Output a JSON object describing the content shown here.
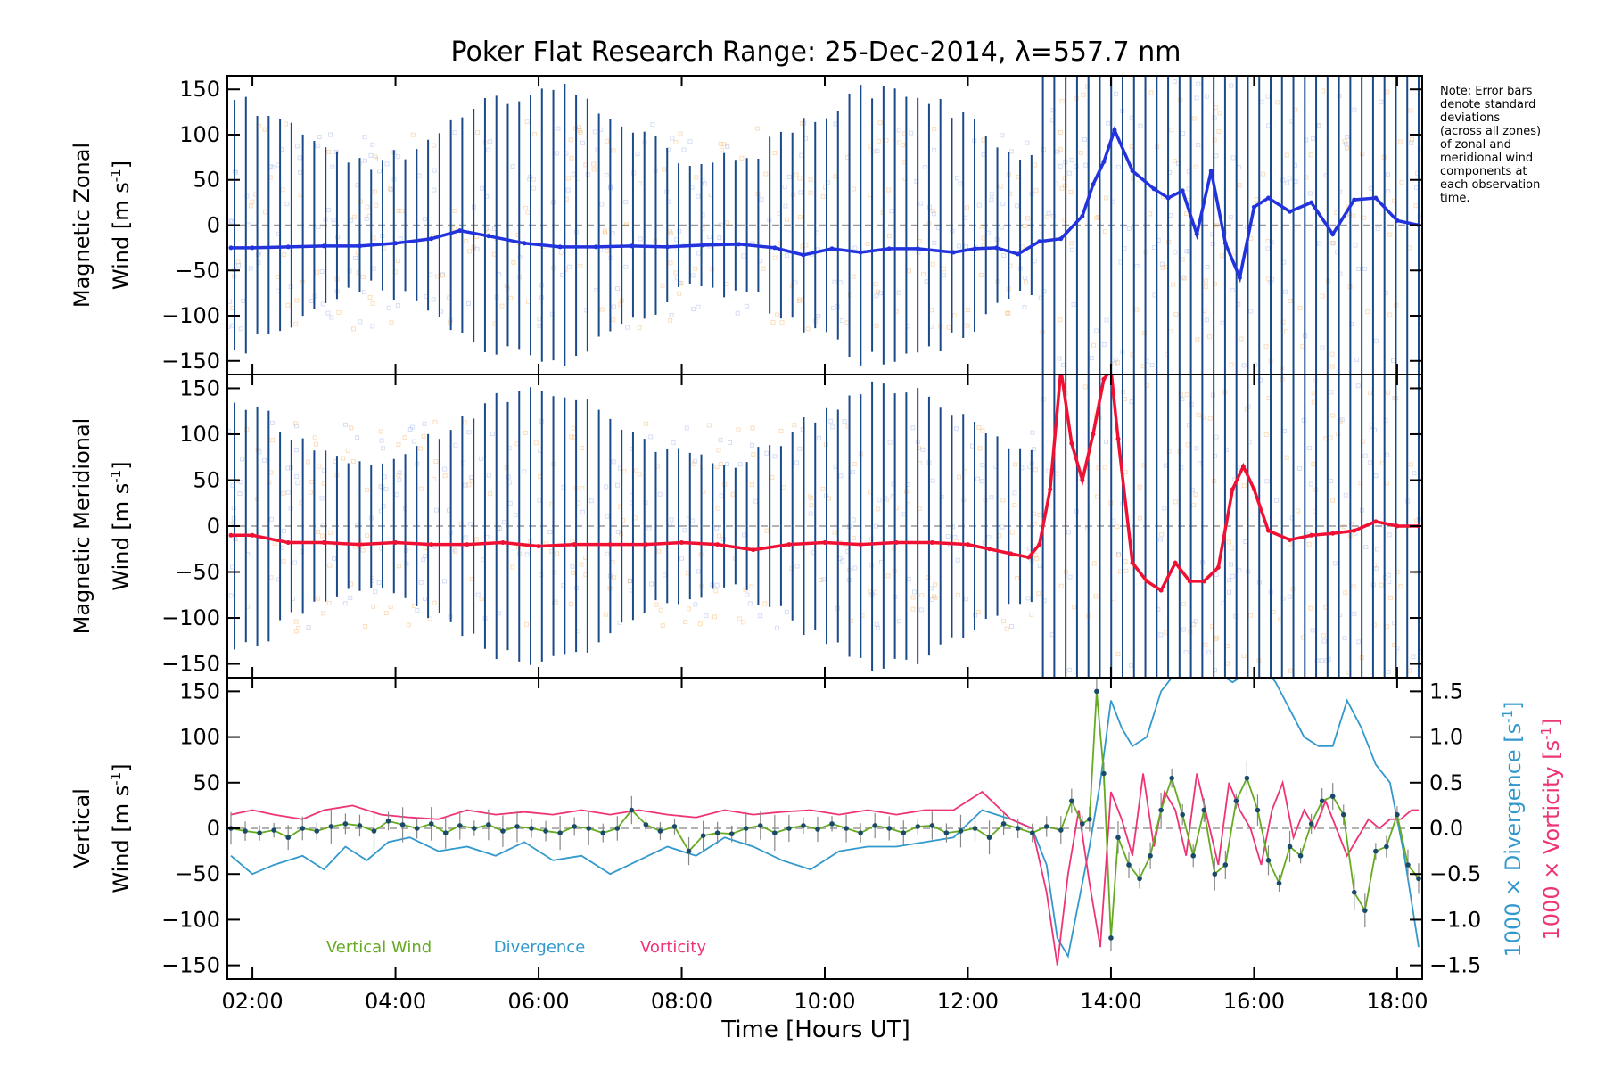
{
  "title": "Poker Flat Research Range: 25-Dec-2014, λ=557.7 nm",
  "note": [
    "Note: Error bars",
    "denote standard",
    "deviations",
    "(across all zones)",
    "of zonal and",
    "meridional wind",
    "components at",
    "each observation",
    "time."
  ],
  "colors": {
    "zonal": "#2233dd",
    "zonal_bg": "#2a4a9a",
    "meridional": "#ee1133",
    "vertical": "#66aa22",
    "divergence": "#3399cc",
    "vorticity": "#ee3377",
    "errorbar": "#1a4a8a",
    "marker": "#1a4a6a",
    "faint_orange": "#f4a040",
    "faint_blue": "#8aa0e0",
    "zero": "#999999"
  },
  "chart_data": [
    {
      "type": "line",
      "panel": "zonal",
      "ylabel_line1": "Magnetic Zonal",
      "ylabel_line2": "Wind [m s",
      "ylabel_sup": "-1",
      "ylabel_close": "]",
      "ylim": [
        -165,
        165
      ],
      "yticks": [
        "150",
        "100",
        "50",
        "0",
        "−50",
        "−100",
        "−150"
      ],
      "yticks_values": [
        150,
        100,
        50,
        0,
        -50,
        -100,
        -150
      ],
      "x": [
        1.7,
        2.0,
        2.5,
        3.0,
        3.5,
        4.0,
        4.5,
        4.9,
        5.3,
        5.8,
        6.3,
        6.8,
        7.3,
        7.8,
        8.3,
        8.8,
        9.3,
        9.7,
        10.1,
        10.5,
        10.9,
        11.3,
        11.8,
        12.1,
        12.4,
        12.7,
        13.0,
        13.3,
        13.6,
        13.75,
        13.9,
        14.05,
        14.3,
        14.6,
        14.8,
        15.0,
        15.2,
        15.4,
        15.6,
        15.8,
        16.0,
        16.2,
        16.5,
        16.8,
        17.1,
        17.4,
        17.7,
        18.0,
        18.3
      ],
      "series": [
        {
          "values": [
            -25,
            -25,
            -24,
            -23,
            -23,
            -20,
            -15,
            -6,
            -12,
            -20,
            -24,
            -24,
            -23,
            -24,
            -22,
            -21,
            -25,
            -33,
            -26,
            -30,
            -26,
            -26,
            -30,
            -26,
            -25,
            -32,
            -18,
            -15,
            10,
            45,
            70,
            105,
            60,
            40,
            30,
            38,
            -10,
            60,
            -20,
            -58,
            20,
            30,
            15,
            25,
            -10,
            28,
            30,
            5,
            0
          ]
        }
      ],
      "title": ""
    },
    {
      "type": "line",
      "panel": "meridional",
      "ylabel_line1": "Magnetic Meridional",
      "ylabel_line2": "Wind [m s",
      "ylabel_sup": "-1",
      "ylabel_close": "]",
      "ylim": [
        -165,
        165
      ],
      "yticks": [
        "150",
        "100",
        "50",
        "0",
        "−50",
        "−100",
        "−150"
      ],
      "yticks_values": [
        150,
        100,
        50,
        0,
        -50,
        -100,
        -150
      ],
      "x": [
        1.7,
        2.0,
        2.5,
        3.0,
        3.5,
        4.0,
        4.5,
        5.0,
        5.5,
        6.0,
        6.5,
        7.0,
        7.5,
        8.0,
        8.5,
        9.0,
        9.5,
        10.0,
        10.5,
        11.0,
        11.5,
        12.0,
        12.3,
        12.6,
        12.85,
        13.0,
        13.15,
        13.3,
        13.45,
        13.6,
        13.75,
        13.9,
        14.0,
        14.1,
        14.3,
        14.5,
        14.7,
        14.9,
        15.1,
        15.3,
        15.5,
        15.7,
        15.85,
        16.0,
        16.2,
        16.5,
        16.8,
        17.1,
        17.4,
        17.7,
        18.0,
        18.3
      ],
      "series": [
        {
          "values": [
            -10,
            -10,
            -18,
            -18,
            -20,
            -18,
            -20,
            -20,
            -18,
            -22,
            -20,
            -20,
            -20,
            -18,
            -20,
            -26,
            -20,
            -18,
            -20,
            -18,
            -18,
            -20,
            -25,
            -30,
            -34,
            -20,
            40,
            170,
            90,
            50,
            100,
            160,
            170,
            95,
            -40,
            -60,
            -70,
            -40,
            -60,
            -60,
            -45,
            40,
            65,
            40,
            -5,
            -15,
            -10,
            -8,
            -5,
            5,
            0,
            0
          ]
        }
      ],
      "title": ""
    },
    {
      "type": "line",
      "panel": "vertical",
      "ylabel_line1": "Vertical",
      "ylabel_line2": "Wind [m s",
      "ylabel_sup": "-1",
      "ylabel_close": "]",
      "ylim": [
        -165,
        165
      ],
      "yticks": [
        "150",
        "100",
        "50",
        "0",
        "−50",
        "−100",
        "−150"
      ],
      "yticks_values": [
        150,
        100,
        50,
        0,
        -50,
        -100,
        -150
      ],
      "y2ticks": [
        "1.5",
        "1.0",
        "0.5",
        "0.0",
        "−0.5",
        "−1.0",
        "−1.5"
      ],
      "y2ticks_values": [
        1.5,
        1.0,
        0.5,
        0.0,
        -0.5,
        -1.0,
        -1.5
      ],
      "y2lim": [
        -1.65,
        1.65
      ],
      "y2label_div": "1000 × Divergence [s",
      "y2label_vor": "1000 × Vorticity [s",
      "xticks": [
        "02:00",
        "04:00",
        "06:00",
        "08:00",
        "10:00",
        "12:00",
        "14:00",
        "16:00",
        "18:00"
      ],
      "xticks_values": [
        2,
        4,
        6,
        8,
        10,
        12,
        14,
        16,
        18
      ],
      "xlabel": "Time [Hours UT]",
      "xlim": [
        1.65,
        18.35
      ],
      "legend": [
        "Vertical Wind",
        "Divergence",
        "Vorticity"
      ],
      "series": [
        {
          "name": "Vertical Wind",
          "x": [
            1.7,
            1.9,
            2.1,
            2.3,
            2.5,
            2.7,
            2.9,
            3.1,
            3.3,
            3.5,
            3.7,
            3.9,
            4.1,
            4.3,
            4.5,
            4.7,
            4.9,
            5.1,
            5.3,
            5.5,
            5.7,
            5.9,
            6.1,
            6.3,
            6.5,
            6.7,
            6.9,
            7.1,
            7.3,
            7.5,
            7.7,
            7.9,
            8.1,
            8.3,
            8.5,
            8.7,
            8.9,
            9.1,
            9.3,
            9.5,
            9.7,
            9.9,
            10.1,
            10.3,
            10.5,
            10.7,
            10.9,
            11.1,
            11.3,
            11.5,
            11.7,
            11.9,
            12.1,
            12.3,
            12.5,
            12.7,
            12.9,
            13.1,
            13.3,
            13.45,
            13.6,
            13.7,
            13.8,
            13.9,
            14.0,
            14.1,
            14.25,
            14.4,
            14.55,
            14.7,
            14.85,
            15.0,
            15.15,
            15.3,
            15.45,
            15.6,
            15.75,
            15.9,
            16.05,
            16.2,
            16.35,
            16.5,
            16.65,
            16.8,
            16.95,
            17.1,
            17.25,
            17.4,
            17.55,
            17.7,
            17.85,
            18.0,
            18.15,
            18.3
          ],
          "values": [
            0,
            -3,
            -5,
            -2,
            -10,
            0,
            -3,
            2,
            5,
            3,
            -3,
            8,
            4,
            0,
            5,
            -5,
            3,
            0,
            4,
            -3,
            2,
            0,
            -3,
            -5,
            2,
            0,
            -5,
            0,
            20,
            4,
            -3,
            2,
            -25,
            -8,
            -5,
            -6,
            0,
            3,
            -5,
            0,
            3,
            -1,
            5,
            0,
            -5,
            3,
            0,
            -5,
            2,
            3,
            -5,
            -3,
            0,
            -10,
            5,
            0,
            -5,
            2,
            -2,
            30,
            5,
            10,
            150,
            60,
            -120,
            -10,
            -40,
            -55,
            -30,
            20,
            55,
            15,
            -30,
            20,
            -50,
            -40,
            30,
            55,
            20,
            -35,
            -60,
            -20,
            -30,
            5,
            30,
            35,
            15,
            -70,
            -90,
            -25,
            -20,
            15,
            -40,
            -55
          ]
        },
        {
          "name": "Divergence",
          "x": [
            1.7,
            2.0,
            2.3,
            2.7,
            3.0,
            3.3,
            3.6,
            3.9,
            4.2,
            4.6,
            5.0,
            5.4,
            5.8,
            6.2,
            6.6,
            7.0,
            7.4,
            7.8,
            8.2,
            8.6,
            9.0,
            9.4,
            9.8,
            10.2,
            10.6,
            11.0,
            11.4,
            11.8,
            12.2,
            12.6,
            12.9,
            13.1,
            13.25,
            13.4,
            13.55,
            13.7,
            13.85,
            14.0,
            14.15,
            14.3,
            14.5,
            14.7,
            14.9,
            15.1,
            15.3,
            15.5,
            15.7,
            15.9,
            16.1,
            16.3,
            16.5,
            16.7,
            16.9,
            17.1,
            17.3,
            17.5,
            17.7,
            17.9,
            18.1,
            18.3
          ],
          "values": [
            -0.3,
            -0.5,
            -0.4,
            -0.3,
            -0.45,
            -0.2,
            -0.35,
            -0.15,
            -0.1,
            -0.25,
            -0.2,
            -0.3,
            -0.15,
            -0.35,
            -0.3,
            -0.5,
            -0.35,
            -0.2,
            -0.3,
            -0.1,
            -0.2,
            -0.35,
            -0.45,
            -0.25,
            -0.2,
            -0.2,
            -0.15,
            -0.1,
            0.2,
            0.1,
            0.0,
            -0.4,
            -1.2,
            -1.4,
            -0.8,
            -0.2,
            0.5,
            1.4,
            1.1,
            0.9,
            1.0,
            1.5,
            1.7,
            2.0,
            1.9,
            1.7,
            1.6,
            1.7,
            1.8,
            1.6,
            1.3,
            1.0,
            0.9,
            0.9,
            1.4,
            1.1,
            0.7,
            0.5,
            -0.3,
            -1.3
          ]
        },
        {
          "name": "Vorticity",
          "x": [
            1.7,
            2.0,
            2.3,
            2.7,
            3.0,
            3.4,
            3.8,
            4.2,
            4.6,
            5.0,
            5.4,
            5.8,
            6.2,
            6.6,
            7.0,
            7.4,
            7.8,
            8.2,
            8.6,
            9.0,
            9.4,
            9.8,
            10.2,
            10.6,
            11.0,
            11.4,
            11.8,
            12.2,
            12.6,
            12.9,
            13.1,
            13.25,
            13.4,
            13.55,
            13.7,
            13.85,
            14.0,
            14.15,
            14.3,
            14.45,
            14.6,
            14.75,
            14.9,
            15.05,
            15.2,
            15.35,
            15.5,
            15.65,
            15.8,
            15.95,
            16.1,
            16.25,
            16.4,
            16.55,
            16.7,
            16.85,
            17.0,
            17.15,
            17.3,
            17.45,
            17.6,
            17.75,
            17.9,
            18.05,
            18.2,
            18.3
          ],
          "values": [
            0.15,
            0.2,
            0.15,
            0.1,
            0.2,
            0.25,
            0.15,
            0.12,
            0.1,
            0.2,
            0.15,
            0.18,
            0.15,
            0.2,
            0.15,
            0.2,
            0.15,
            0.12,
            0.2,
            0.15,
            0.18,
            0.2,
            0.15,
            0.2,
            0.15,
            0.2,
            0.2,
            0.4,
            0.1,
            0.0,
            -0.7,
            -1.5,
            -0.5,
            0.2,
            -0.6,
            -1.3,
            0.4,
            0.1,
            -0.3,
            0.6,
            -0.2,
            0.4,
            0.2,
            -0.3,
            0.6,
            0.1,
            -0.4,
            0.5,
            0.2,
            0.0,
            -0.4,
            0.2,
            0.5,
            -0.1,
            0.2,
            0.0,
            0.3,
            0.0,
            -0.3,
            -0.1,
            0.1,
            0.0,
            0.1,
            0.1,
            0.2,
            0.2
          ]
        }
      ],
      "title": ""
    }
  ]
}
